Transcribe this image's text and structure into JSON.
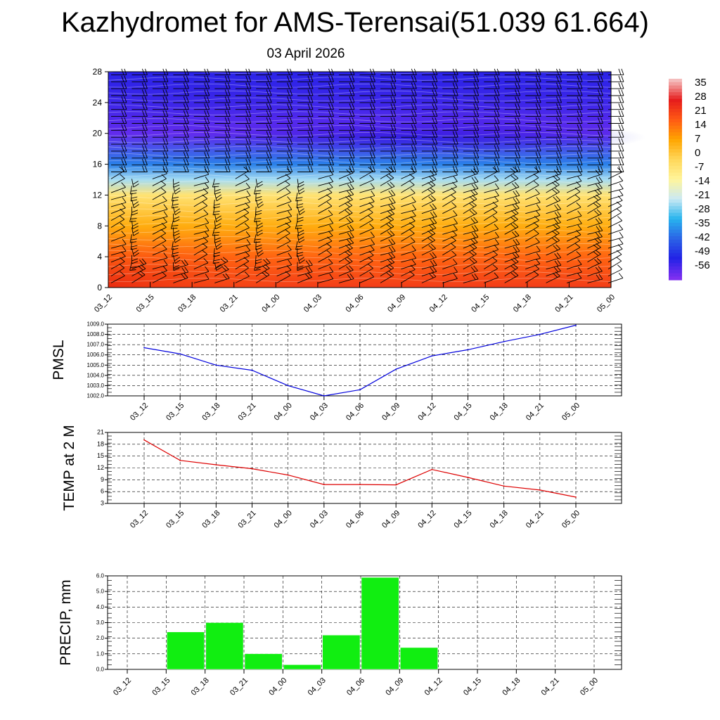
{
  "title": "Kazhydromet for AMS-Terensai(51.039 61.664)",
  "subtitle": "03 April 2026",
  "colors": {
    "pmsl_line": "#0000dd",
    "temp_line": "#dd0000",
    "precip_bar": "#11ee11",
    "barb": "#000000"
  },
  "chart_data": [
    {
      "name": "vertical-section",
      "type": "heatmap",
      "title": "",
      "x_ticks": [
        "03_12",
        "03_15",
        "03_18",
        "03_21",
        "04_00",
        "04_03",
        "04_06",
        "04_09",
        "04_12",
        "04_15",
        "04_18",
        "04_21",
        "05_00"
      ],
      "y_ticks": [
        "0",
        "4",
        "8",
        "12",
        "16",
        "20",
        "24",
        "28"
      ],
      "ylim": [
        0,
        28
      ],
      "colorbar": {
        "labels": [
          "35",
          "28",
          "21",
          "14",
          "7",
          "0",
          "-7",
          "-14",
          "-21",
          "-28",
          "-35",
          "-42",
          "-49",
          "-56"
        ],
        "stops": [
          "#f4bcbc",
          "#e61c1c",
          "#ff5a14",
          "#ffa500",
          "#ffd75a",
          "#fff59b",
          "#cbe9f4",
          "#28b4ee",
          "#2b64e6",
          "#2222e6",
          "#7e2ff0"
        ]
      },
      "temperature_profile": [
        {
          "h": 0,
          "t": 20
        },
        {
          "h": 4,
          "t": 14
        },
        {
          "h": 8,
          "t": 4
        },
        {
          "h": 12,
          "t": -8
        },
        {
          "h": 14,
          "t": -26
        },
        {
          "h": 16,
          "t": -40
        },
        {
          "h": 20,
          "t": -60
        },
        {
          "h": 24,
          "t": -56
        },
        {
          "h": 28,
          "t": -54
        }
      ]
    },
    {
      "name": "pmsl",
      "type": "line",
      "ylabel": "PMSL",
      "categories": [
        "03_12",
        "03_15",
        "03_18",
        "03_21",
        "04_00",
        "04_03",
        "04_06",
        "04_09",
        "04_12",
        "04_15",
        "04_18",
        "04_21",
        "05_00"
      ],
      "values": [
        1006.7,
        1006.1,
        1005.0,
        1004.5,
        1003.0,
        1002.0,
        1002.6,
        1004.6,
        1005.9,
        1006.5,
        1007.3,
        1008.0,
        1008.9
      ],
      "ylim": [
        1002.0,
        1009.0
      ],
      "y_ticks": [
        "1002.0",
        "1003.0",
        "1004.0",
        "1005.0",
        "1006.0",
        "1007.0",
        "1008.0",
        "1009.0"
      ]
    },
    {
      "name": "temp2m",
      "type": "line",
      "ylabel": "TEMP at 2 M",
      "categories": [
        "03_12",
        "03_15",
        "03_18",
        "03_21",
        "04_00",
        "04_03",
        "04_06",
        "04_09",
        "04_12",
        "04_15",
        "04_18",
        "04_21",
        "05_00"
      ],
      "values": [
        19.1,
        13.9,
        12.8,
        11.8,
        10.2,
        7.8,
        7.8,
        7.7,
        11.6,
        9.6,
        7.4,
        6.4,
        4.6
      ],
      "ylim": [
        3,
        21
      ],
      "y_ticks": [
        "3",
        "6",
        "9",
        "12",
        "15",
        "18",
        "21"
      ]
    },
    {
      "name": "precip",
      "type": "bar",
      "ylabel": "PRECIP, mm",
      "categories": [
        "03_12",
        "03_15",
        "03_18",
        "03_21",
        "04_00",
        "04_03",
        "04_06",
        "04_09",
        "04_12",
        "04_15",
        "04_18",
        "04_21",
        "05_00"
      ],
      "values": [
        0,
        2.4,
        3.0,
        1.0,
        0.3,
        2.2,
        5.9,
        1.4,
        0,
        0,
        0,
        0,
        0
      ],
      "ylim": [
        0,
        6.0
      ],
      "y_ticks": [
        "0.0",
        "1.0",
        "2.0",
        "3.0",
        "4.0",
        "5.0",
        "6.0"
      ]
    }
  ]
}
